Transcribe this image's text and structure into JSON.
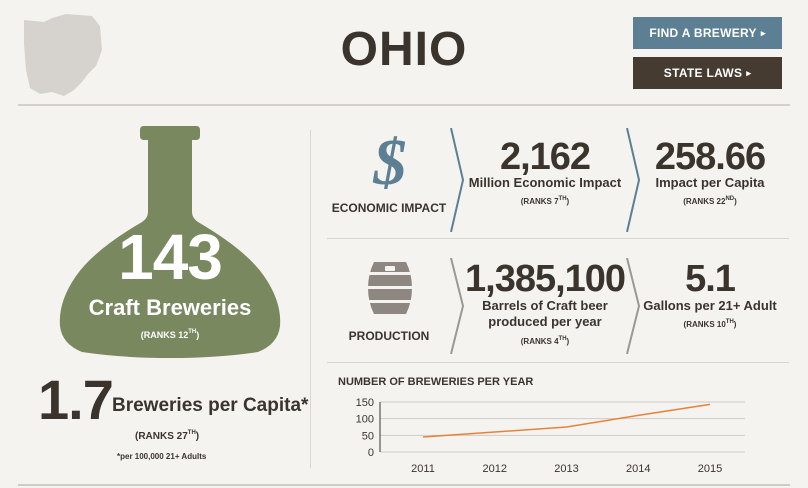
{
  "state": {
    "name": "OHIO"
  },
  "buttons": {
    "find": "FIND A BREWERY",
    "laws": "STATE LAWS",
    "arrow": "▸"
  },
  "breweries": {
    "count": "143",
    "label": "Craft Breweries",
    "rank_text": "(RANKS 12",
    "rank_sup": "TH",
    "rank_close": ")"
  },
  "per_capita": {
    "value": "1.7",
    "label": "Breweries per Capita*",
    "rank_text": "(RANKS 27",
    "rank_sup": "TH",
    "rank_close": ")",
    "note": "*per 100,000 21+ Adults"
  },
  "economic": {
    "label": "ECONOMIC IMPACT",
    "icon": "dollar-icon",
    "impact": {
      "value": "2,162",
      "label": "Million Economic Impact",
      "rank_text": "(RANKS 7",
      "rank_sup": "TH",
      "rank_close": ")"
    },
    "per_capita": {
      "value": "258.66",
      "label": "Impact per Capita",
      "rank_text": "(RANKS 22",
      "rank_sup": "ND",
      "rank_close": ")"
    }
  },
  "production": {
    "label": "PRODUCTION",
    "icon": "barrel-icon",
    "barrels": {
      "value": "1,385,100",
      "label_1": "Barrels of Craft beer",
      "label_2": "produced per year",
      "rank_text": "(RANKS 4",
      "rank_sup": "TH",
      "rank_close": ")"
    },
    "gallons": {
      "value": "5.1",
      "label": "Gallons per 21+ Adult",
      "rank_text": "(RANKS 10",
      "rank_sup": "TH",
      "rank_close": ")"
    }
  },
  "colors": {
    "accent_blue": "#5d7f94",
    "dark_brown": "#463b30",
    "bottle_green": "#7a8860",
    "line_orange": "#e8823a"
  },
  "chart_data": {
    "type": "line",
    "title": "NUMBER OF BREWERIES PER YEAR",
    "x": [
      "2011",
      "2012",
      "2013",
      "2014",
      "2015"
    ],
    "series": [
      {
        "values": [
          45,
          60,
          75,
          110,
          143
        ]
      }
    ],
    "ylim": [
      0,
      150
    ],
    "yticks": [
      0,
      50,
      100,
      150
    ],
    "grid": true
  }
}
